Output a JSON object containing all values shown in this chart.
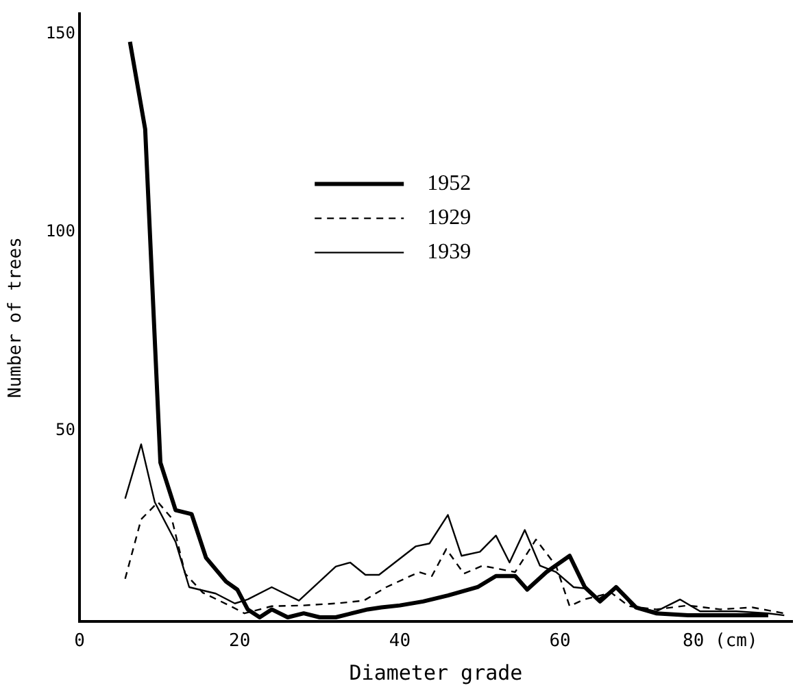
{
  "chart_data": {
    "type": "line",
    "xlabel": "Diameter grade",
    "ylabel": "Number of trees",
    "xlim": [
      0,
      89
    ],
    "xticks": [
      0,
      20,
      40,
      60,
      {
        "value": 80,
        "label": "80 (cm)"
      }
    ],
    "ylim": [
      2,
      155
    ],
    "yticks": [
      50,
      100,
      150
    ],
    "grid": false,
    "legend": "top",
    "marker": "none",
    "series": [
      {
        "name": "1952",
        "color": "#000000",
        "line_style": "solid",
        "x": [
          6.3,
          8.2,
          10.1,
          12,
          14,
          15.8,
          18.3,
          19.7,
          21,
          22.5,
          24,
          26,
          28,
          30,
          32,
          34,
          36,
          37.7,
          40,
          42.9,
          46,
          49.7,
          52,
          54.4,
          55.9,
          58.3,
          61.2,
          63.1,
          65,
          67,
          69.5,
          72,
          76,
          80,
          84,
          86
        ],
        "values": [
          148,
          126,
          42,
          30,
          29,
          18,
          12,
          10,
          5,
          3,
          5,
          3,
          4,
          3,
          3,
          4,
          5,
          5.5,
          6,
          7,
          8.5,
          10.6,
          13.4,
          13.4,
          10,
          14.4,
          18.5,
          10.6,
          7,
          10.6,
          5.5,
          4,
          3.5,
          3.5,
          3.5,
          3.5
        ]
      },
      {
        "name": "1929",
        "color": "#000000",
        "line_style": "dashed",
        "x": [
          5.7,
          7.7,
          9.8,
          11.5,
          13.2,
          15.4,
          18.9,
          20.6,
          24,
          28,
          32,
          35.5,
          38.3,
          42.4,
          44,
          45.8,
          48,
          50.3,
          54.4,
          57,
          59.5,
          61.2,
          63,
          66.4,
          68.6,
          72,
          76,
          80,
          84,
          88
        ],
        "values": [
          12.7,
          27.7,
          32,
          28,
          14,
          9.2,
          5.8,
          4,
          5.8,
          6,
          6.5,
          7.2,
          10.6,
          14.4,
          13.4,
          20.2,
          14,
          16,
          14.4,
          22.6,
          16,
          5.8,
          7.5,
          9.2,
          5.8,
          5,
          6,
          5,
          5.5,
          4
        ]
      },
      {
        "name": "1939",
        "color": "#000000",
        "line_style": "solid",
        "x": [
          5.7,
          7.7,
          9.4,
          12,
          13.7,
          17,
          19.4,
          21,
          24,
          27.4,
          32,
          33.8,
          35.7,
          37.4,
          42,
          43.7,
          46,
          47.7,
          50,
          52,
          53.7,
          55.6,
          57.5,
          59.5,
          61.7,
          63.1,
          64.7,
          67.2,
          69,
          72,
          75,
          77.5,
          82,
          86,
          88
        ],
        "values": [
          32.9,
          46.6,
          32,
          22,
          10.6,
          9,
          6.5,
          7.5,
          10.6,
          7.2,
          15.8,
          16.8,
          13.7,
          13.7,
          20.9,
          21.6,
          28.8,
          18.5,
          19.5,
          23.6,
          16.8,
          25,
          16,
          14.4,
          10.6,
          10.3,
          7.5,
          10.6,
          5.8,
          4.5,
          7.5,
          4.5,
          4.5,
          4,
          3.5
        ]
      }
    ]
  }
}
